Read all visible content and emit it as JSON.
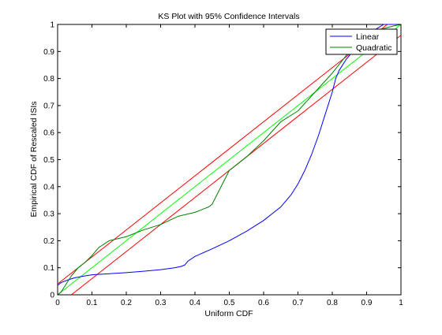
{
  "chart_data": {
    "type": "line",
    "title": "KS Plot with 95% Confidence Intervals",
    "xlabel": "Uniform CDF",
    "ylabel": "Empirical CDF of Rescaled ISIs",
    "xlim": [
      0,
      1
    ],
    "ylim": [
      0,
      1
    ],
    "xticks": [
      "0",
      "0.1",
      "0.2",
      "0.3",
      "0.4",
      "0.5",
      "0.6",
      "0.7",
      "0.8",
      "0.9",
      "1"
    ],
    "yticks": [
      "0",
      "0.1",
      "0.2",
      "0.3",
      "0.4",
      "0.5",
      "0.6",
      "0.7",
      "0.8",
      "0.9",
      "1"
    ],
    "grid": false,
    "legend_position": "top-right",
    "series": [
      {
        "name": "Linear",
        "color": "#0000ff",
        "x": [
          0,
          0.01,
          0.03,
          0.05,
          0.08,
          0.1,
          0.15,
          0.2,
          0.25,
          0.3,
          0.34,
          0.36,
          0.37,
          0.38,
          0.4,
          0.45,
          0.5,
          0.55,
          0.6,
          0.65,
          0.68,
          0.7,
          0.72,
          0.74,
          0.76,
          0.78,
          0.8,
          0.81,
          0.82,
          0.84,
          0.86,
          0.88,
          0.9,
          0.93,
          0.95,
          0.97,
          1
        ],
        "y": [
          0.035,
          0.045,
          0.055,
          0.063,
          0.07,
          0.074,
          0.078,
          0.082,
          0.087,
          0.093,
          0.1,
          0.105,
          0.11,
          0.125,
          0.142,
          0.17,
          0.2,
          0.235,
          0.275,
          0.325,
          0.37,
          0.41,
          0.46,
          0.52,
          0.59,
          0.67,
          0.75,
          0.8,
          0.83,
          0.87,
          0.9,
          0.93,
          0.96,
          0.985,
          1.0,
          1.0,
          1.0
        ]
      },
      {
        "name": "Quadratic",
        "color": "#008000",
        "x": [
          0,
          0.01,
          0.02,
          0.04,
          0.06,
          0.08,
          0.1,
          0.12,
          0.15,
          0.2,
          0.25,
          0.3,
          0.35,
          0.4,
          0.44,
          0.45,
          0.5,
          0.55,
          0.6,
          0.65,
          0.7,
          0.75,
          0.8,
          0.85,
          0.9,
          0.95,
          0.98,
          1
        ],
        "y": [
          0,
          0.01,
          0.03,
          0.07,
          0.1,
          0.12,
          0.145,
          0.175,
          0.2,
          0.215,
          0.24,
          0.26,
          0.29,
          0.305,
          0.325,
          0.335,
          0.46,
          0.51,
          0.57,
          0.64,
          0.68,
          0.75,
          0.82,
          0.9,
          0.955,
          0.985,
          0.995,
          1.0
        ]
      }
    ],
    "reference_lines": [
      {
        "color": "#00ff00",
        "x": [
          0,
          1
        ],
        "y": [
          0,
          1
        ]
      },
      {
        "color": "#ff0000",
        "x": [
          0,
          0.96
        ],
        "y": [
          0.04,
          1
        ]
      },
      {
        "color": "#ff0000",
        "x": [
          0.04,
          1
        ],
        "y": [
          0,
          0.96
        ]
      }
    ]
  }
}
